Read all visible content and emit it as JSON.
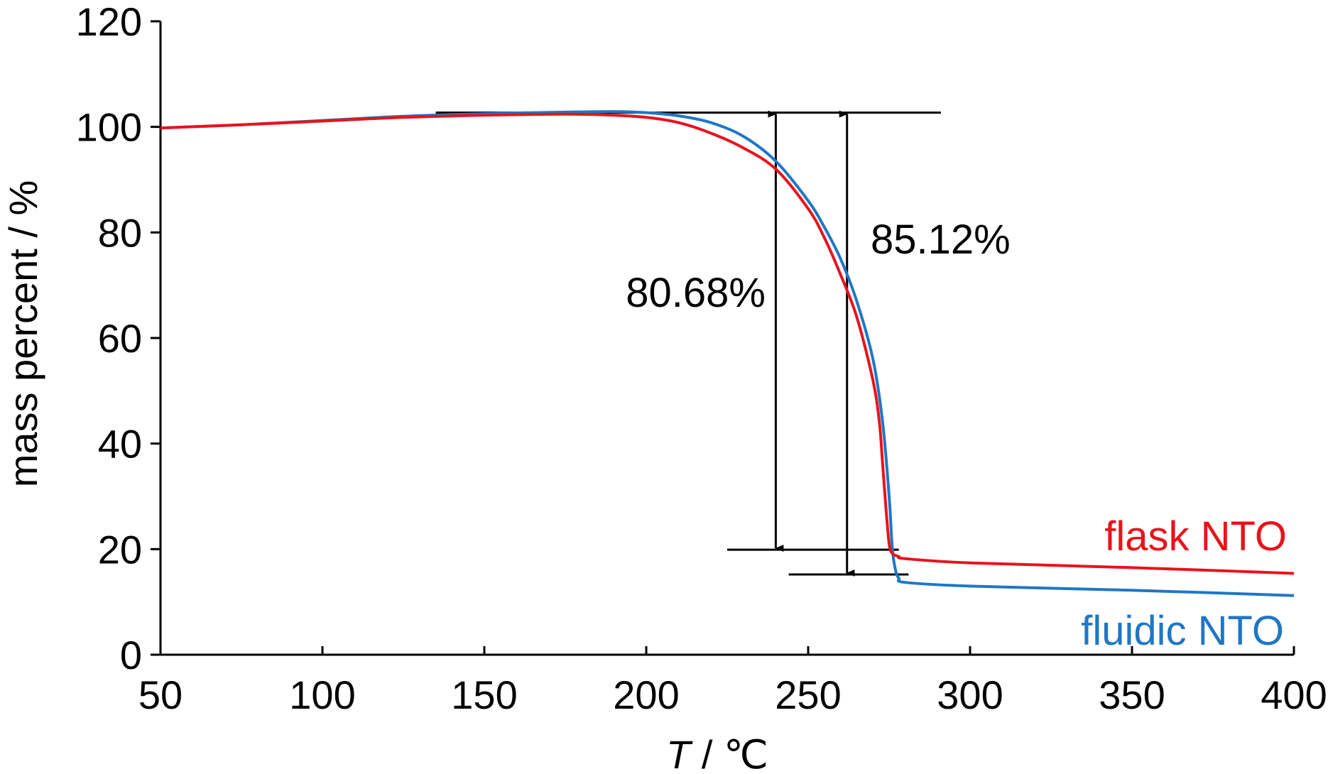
{
  "chart_data": {
    "type": "line",
    "title": "",
    "xlabel_var": "T",
    "xlabel_sep": " / ",
    "xlabel_unit": "℃",
    "ylabel": "mass percent / %",
    "xlim": [
      50,
      400
    ],
    "ylim": [
      0,
      120
    ],
    "xticks": [
      "50",
      "100",
      "150",
      "200",
      "250",
      "300",
      "350",
      "400"
    ],
    "yticks": [
      "0",
      "20",
      "40",
      "60",
      "80",
      "100",
      "120"
    ],
    "grid": false,
    "legend": "inline labels at right end of each curve",
    "series": [
      {
        "name": "fluidic NTO",
        "color": "#1f77c4",
        "x": [
          50,
          75,
          100,
          125,
          150,
          175,
          190,
          200,
          210,
          220,
          230,
          240,
          250,
          255,
          260,
          265,
          270,
          273,
          275,
          276,
          277,
          278,
          280,
          300,
          350,
          400
        ],
        "y": [
          99.8,
          100.4,
          101.2,
          102.0,
          102.5,
          102.8,
          102.9,
          102.7,
          102.1,
          100.8,
          98.2,
          93.5,
          86.0,
          81.0,
          75.0,
          67.0,
          56.0,
          44.0,
          30.0,
          20.0,
          16.0,
          14.5,
          13.7,
          13.0,
          12.2,
          11.2
        ]
      },
      {
        "name": "flask NTO",
        "color": "#e8131c",
        "x": [
          50,
          75,
          100,
          125,
          150,
          175,
          190,
          200,
          210,
          220,
          230,
          240,
          250,
          255,
          260,
          265,
          270,
          272,
          273,
          274,
          275,
          276,
          278,
          280,
          300,
          350,
          400
        ],
        "y": [
          99.8,
          100.4,
          101.1,
          101.8,
          102.2,
          102.4,
          102.2,
          101.8,
          100.8,
          98.8,
          96.0,
          92.0,
          84.5,
          79.0,
          72.0,
          64.0,
          52.0,
          44.0,
          36.0,
          28.0,
          21.0,
          19.2,
          18.6,
          18.2,
          17.4,
          16.5,
          15.4
        ]
      }
    ],
    "reference_lines": [
      {
        "y": 102.7,
        "x_from": 135,
        "x_to": 291
      },
      {
        "y": 19.9,
        "x_from": 225,
        "x_to": 278
      },
      {
        "y": 15.2,
        "x_from": 244,
        "x_to": 281
      }
    ],
    "arrows": [
      {
        "x": 240,
        "y_top": 102.7,
        "y_bottom": 19.9,
        "label": "80.68%"
      },
      {
        "x": 262,
        "y_top": 102.7,
        "y_bottom": 15.2,
        "label": "85.12%"
      }
    ],
    "series_labels": [
      {
        "text": "flask NTO",
        "color": "#e8131c"
      },
      {
        "text": "fluidic NTO",
        "color": "#1f77c4"
      }
    ]
  }
}
